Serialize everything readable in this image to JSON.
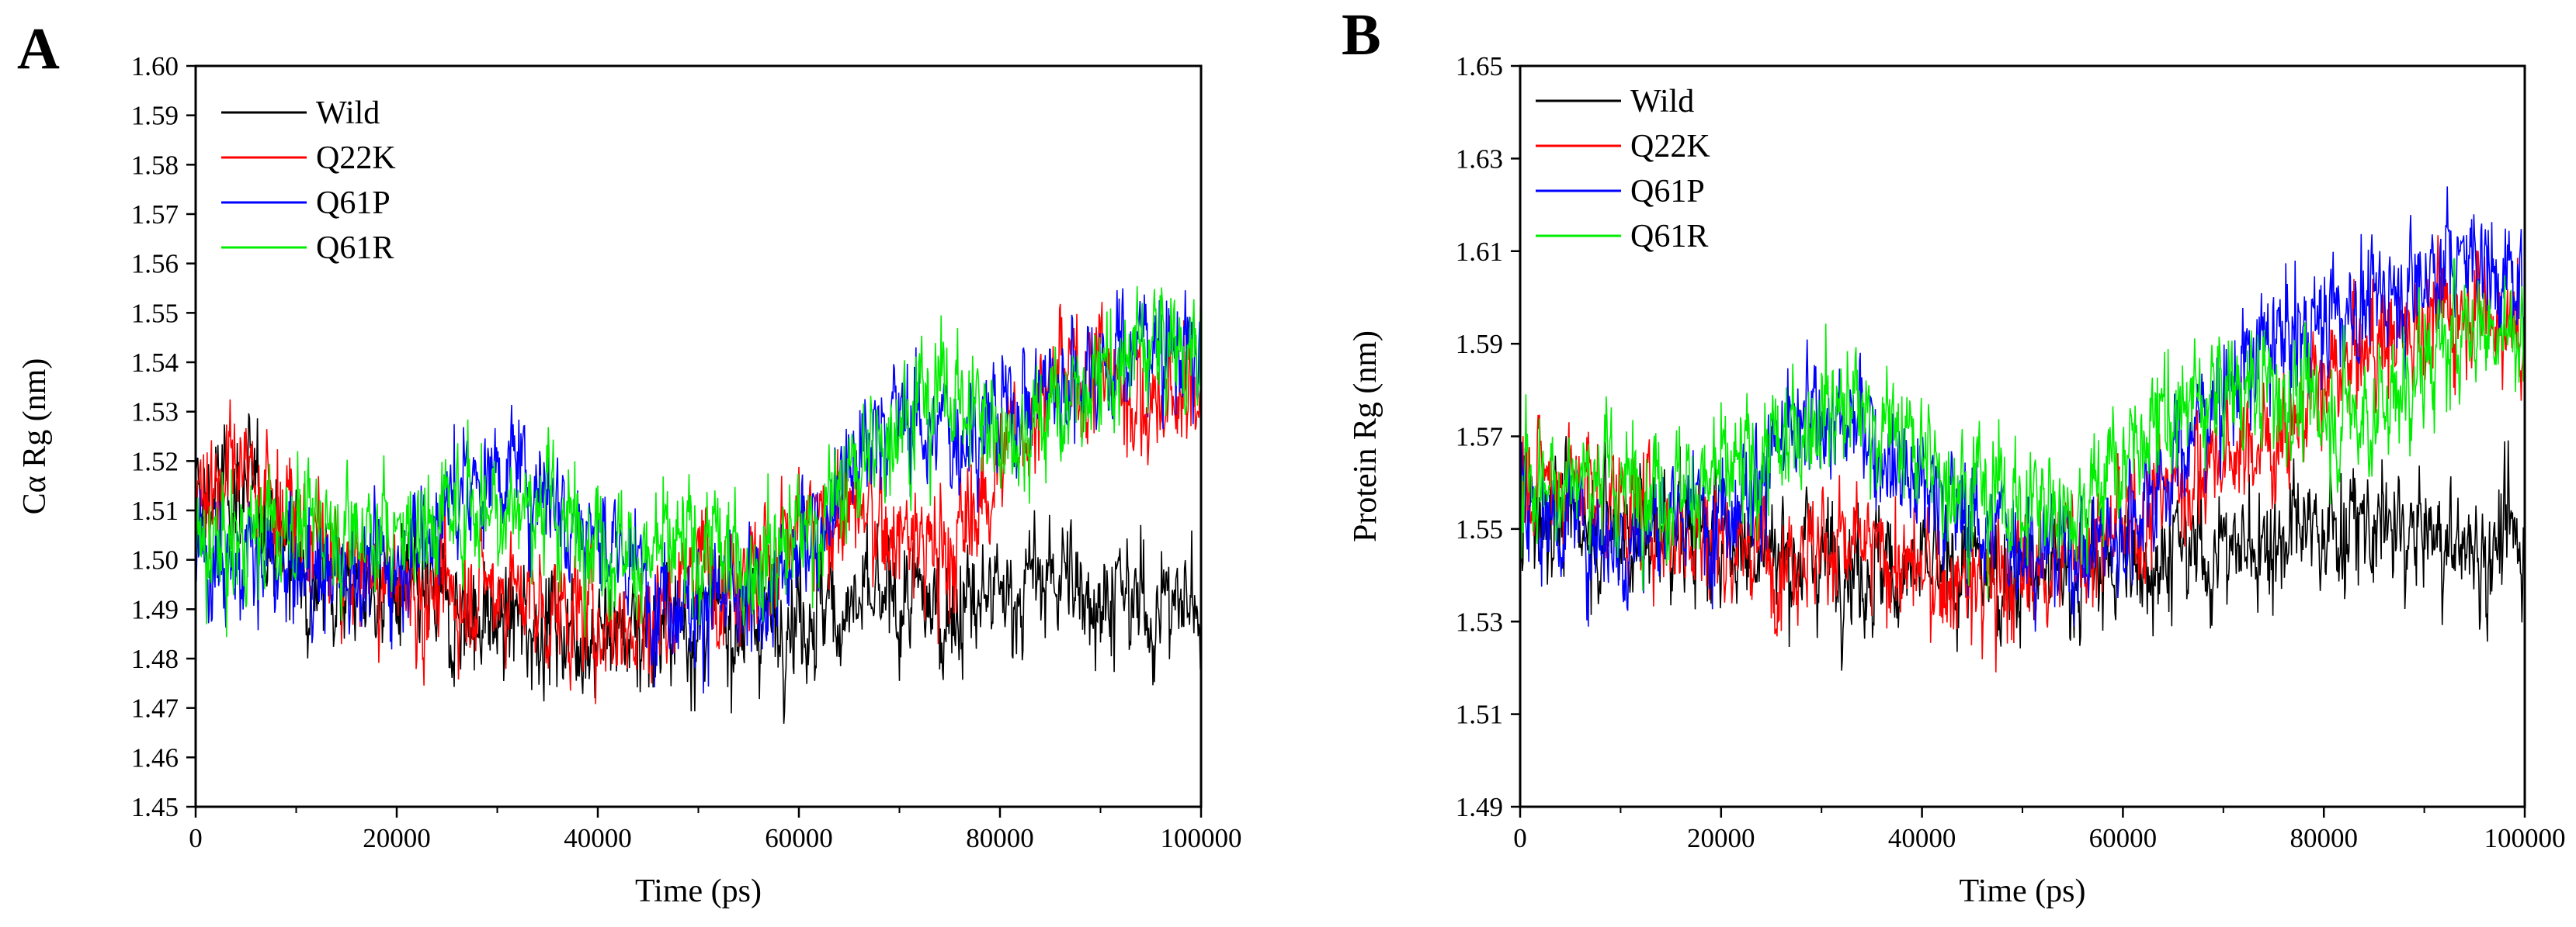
{
  "chart_data": [
    {
      "panel": "A",
      "type": "line",
      "xlabel": "Time (ps)",
      "ylabel": "Cα Rg (nm)",
      "xlim": [
        0,
        100000
      ],
      "ylim": [
        1.45,
        1.6
      ],
      "xticks": [
        0,
        20000,
        40000,
        60000,
        80000,
        100000
      ],
      "xtick_labels": [
        "0",
        "20000",
        "40000",
        "60000",
        "80000",
        "100000"
      ],
      "yticks": [
        1.45,
        1.46,
        1.47,
        1.48,
        1.49,
        1.5,
        1.51,
        1.52,
        1.53,
        1.54,
        1.55,
        1.56,
        1.57,
        1.58,
        1.59,
        1.6
      ],
      "ytick_labels": [
        "1.45",
        "1.46",
        "1.47",
        "1.48",
        "1.49",
        "1.50",
        "1.51",
        "1.52",
        "1.53",
        "1.54",
        "1.55",
        "1.56",
        "1.57",
        "1.58",
        "1.59",
        "1.60"
      ],
      "legend_position": "top-left",
      "series": [
        {
          "name": "Wild",
          "color": "#000000",
          "x": [
            0,
            5000,
            10000,
            15000,
            20000,
            25000,
            30000,
            35000,
            40000,
            45000,
            50000,
            55000,
            60000,
            65000,
            70000,
            75000,
            80000,
            85000,
            90000,
            95000,
            100000
          ],
          "values": [
            1.512,
            1.515,
            1.5,
            1.495,
            1.492,
            1.49,
            1.487,
            1.488,
            1.485,
            1.486,
            1.487,
            1.489,
            1.49,
            1.49,
            1.491,
            1.49,
            1.492,
            1.497,
            1.493,
            1.49,
            1.492
          ]
        },
        {
          "name": "Q22K",
          "color": "#ff0000",
          "x": [
            0,
            5000,
            10000,
            15000,
            20000,
            25000,
            30000,
            35000,
            40000,
            45000,
            50000,
            55000,
            60000,
            65000,
            70000,
            75000,
            80000,
            85000,
            90000,
            95000,
            100000
          ],
          "values": [
            1.515,
            1.518,
            1.507,
            1.497,
            1.495,
            1.492,
            1.495,
            1.49,
            1.488,
            1.487,
            1.5,
            1.498,
            1.505,
            1.51,
            1.505,
            1.5,
            1.52,
            1.535,
            1.54,
            1.53,
            1.535
          ]
        },
        {
          "name": "Q61P",
          "color": "#0000ff",
          "x": [
            0,
            5000,
            10000,
            15000,
            20000,
            25000,
            30000,
            35000,
            40000,
            45000,
            50000,
            55000,
            60000,
            65000,
            70000,
            75000,
            80000,
            85000,
            90000,
            95000,
            100000
          ],
          "values": [
            1.503,
            1.498,
            1.497,
            1.498,
            1.5,
            1.51,
            1.52,
            1.515,
            1.505,
            1.495,
            1.492,
            1.49,
            1.5,
            1.52,
            1.53,
            1.525,
            1.53,
            1.535,
            1.54,
            1.545,
            1.54
          ]
        },
        {
          "name": "Q61R",
          "color": "#00ee00",
          "x": [
            0,
            5000,
            10000,
            15000,
            20000,
            25000,
            30000,
            35000,
            40000,
            45000,
            50000,
            55000,
            60000,
            65000,
            70000,
            75000,
            80000,
            85000,
            90000,
            95000,
            100000
          ],
          "values": [
            1.5,
            1.505,
            1.508,
            1.507,
            1.505,
            1.51,
            1.512,
            1.51,
            1.505,
            1.5,
            1.502,
            1.5,
            1.505,
            1.515,
            1.53,
            1.535,
            1.525,
            1.53,
            1.535,
            1.545,
            1.54
          ]
        }
      ]
    },
    {
      "panel": "B",
      "type": "line",
      "xlabel": "Time (ps)",
      "ylabel": "Protein Rg (nm)",
      "xlim": [
        0,
        100000
      ],
      "ylim": [
        1.49,
        1.65
      ],
      "xticks": [
        0,
        20000,
        40000,
        60000,
        80000,
        100000
      ],
      "xtick_labels": [
        "0",
        "20000",
        "40000",
        "60000",
        "80000",
        "100000"
      ],
      "yticks": [
        1.49,
        1.51,
        1.53,
        1.55,
        1.57,
        1.59,
        1.61,
        1.63,
        1.65
      ],
      "ytick_labels": [
        "1.49",
        "1.51",
        "1.53",
        "1.55",
        "1.57",
        "1.59",
        "1.61",
        "1.63",
        "1.65"
      ],
      "legend_position": "top-left",
      "series": [
        {
          "name": "Wild",
          "color": "#000000",
          "x": [
            0,
            5000,
            10000,
            15000,
            20000,
            25000,
            30000,
            35000,
            40000,
            45000,
            50000,
            55000,
            60000,
            65000,
            70000,
            75000,
            80000,
            85000,
            90000,
            95000,
            100000
          ],
          "values": [
            1.555,
            1.552,
            1.55,
            1.55,
            1.548,
            1.545,
            1.545,
            1.542,
            1.54,
            1.54,
            1.54,
            1.54,
            1.542,
            1.545,
            1.545,
            1.548,
            1.55,
            1.55,
            1.548,
            1.545,
            1.548
          ]
        },
        {
          "name": "Q22K",
          "color": "#ff0000",
          "x": [
            0,
            5000,
            10000,
            15000,
            20000,
            25000,
            30000,
            35000,
            40000,
            45000,
            50000,
            55000,
            60000,
            65000,
            70000,
            75000,
            80000,
            85000,
            90000,
            95000,
            100000
          ],
          "values": [
            1.562,
            1.56,
            1.555,
            1.55,
            1.548,
            1.545,
            1.547,
            1.545,
            1.54,
            1.537,
            1.54,
            1.545,
            1.55,
            1.56,
            1.565,
            1.57,
            1.58,
            1.59,
            1.595,
            1.6,
            1.59
          ]
        },
        {
          "name": "Q61P",
          "color": "#0000ff",
          "x": [
            0,
            5000,
            10000,
            15000,
            20000,
            25000,
            30000,
            35000,
            40000,
            45000,
            50000,
            55000,
            60000,
            65000,
            70000,
            75000,
            80000,
            85000,
            90000,
            95000,
            100000
          ],
          "values": [
            1.555,
            1.552,
            1.548,
            1.552,
            1.555,
            1.565,
            1.575,
            1.57,
            1.56,
            1.552,
            1.548,
            1.545,
            1.55,
            1.565,
            1.58,
            1.59,
            1.595,
            1.6,
            1.605,
            1.61,
            1.6
          ]
        },
        {
          "name": "Q61R",
          "color": "#00ee00",
          "x": [
            0,
            5000,
            10000,
            15000,
            20000,
            25000,
            30000,
            35000,
            40000,
            45000,
            50000,
            55000,
            60000,
            65000,
            70000,
            75000,
            80000,
            85000,
            90000,
            95000,
            100000
          ],
          "values": [
            1.56,
            1.562,
            1.56,
            1.56,
            1.56,
            1.565,
            1.578,
            1.575,
            1.565,
            1.56,
            1.555,
            1.555,
            1.565,
            1.575,
            1.58,
            1.58,
            1.575,
            1.575,
            1.585,
            1.595,
            1.59
          ]
        }
      ]
    }
  ]
}
